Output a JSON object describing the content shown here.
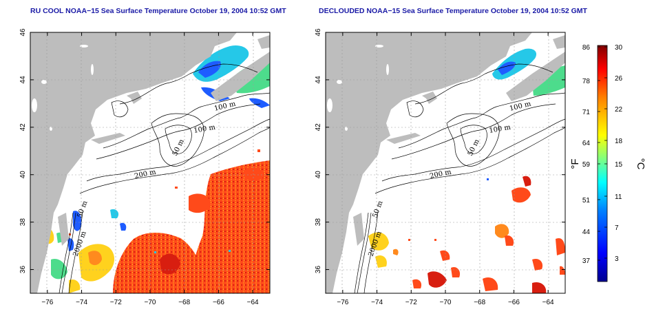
{
  "titles": {
    "left": "RU COOL NOAA−15 Sea Surface Temperature October 19, 2004 10:52 GMT",
    "right": "DECLOUDED NOAA−15 Sea Surface Temperature October 19, 2004 10:52 GMT"
  },
  "axes": {
    "lon_ticks": [
      "−76",
      "−74",
      "−72",
      "−70",
      "−68",
      "−66",
      "−64"
    ],
    "lat_ticks": [
      "46",
      "44",
      "42",
      "40",
      "38",
      "36"
    ],
    "lon_range": [
      -77,
      -63
    ],
    "lat_range": [
      35,
      46
    ]
  },
  "contour_labels": [
    "100 m",
    "100 m",
    "50 m",
    "200 m",
    "50 m",
    "2000 m"
  ],
  "colorbar": {
    "fahrenheit_ticks": [
      "86",
      "78",
      "71",
      "64",
      "59",
      "51",
      "44",
      "37"
    ],
    "celsius_ticks": [
      "30",
      "26",
      "22",
      "18",
      "15",
      "11",
      "7",
      "3"
    ],
    "fahrenheit_label": "°F",
    "celsius_label": "°C",
    "range_c": [
      0,
      30
    ],
    "colors": [
      "#00008f",
      "#0000ff",
      "#0080ff",
      "#00ffff",
      "#80ff80",
      "#ffff00",
      "#ff8000",
      "#ff0000",
      "#800000"
    ]
  },
  "colors": {
    "land": "#bdbdbd",
    "cool": "#1e5cff",
    "cyan": "#25c8e8",
    "green": "#4ddc8c",
    "warm": "#ff4a1a",
    "hot": "#d81e10",
    "yellow": "#ffd21e",
    "orange": "#ff8a1e"
  }
}
